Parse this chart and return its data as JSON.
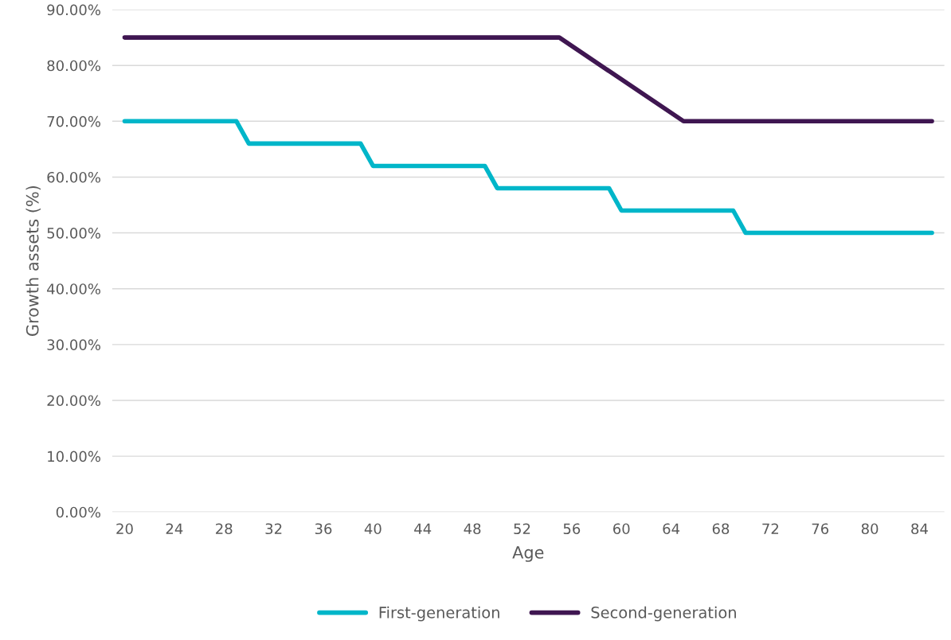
{
  "chart_data": {
    "type": "line",
    "xlabel": "Age",
    "ylabel": "Growth assets (%)",
    "series": [
      {
        "name": "First-generation",
        "color": "#00b6c9",
        "x": [
          20,
          29,
          30,
          39,
          40,
          49,
          50,
          59,
          60,
          69,
          70,
          85
        ],
        "values": [
          70,
          70,
          66,
          66,
          62,
          62,
          58,
          58,
          54,
          54,
          50,
          50
        ]
      },
      {
        "name": "Second-generation",
        "color": "#3f1651",
        "x": [
          20,
          55,
          65,
          85
        ],
        "values": [
          85,
          85,
          70,
          70
        ]
      }
    ],
    "xlim": [
      19,
      86
    ],
    "xticks": [
      20,
      24,
      28,
      32,
      36,
      40,
      44,
      48,
      52,
      56,
      60,
      64,
      68,
      72,
      76,
      80,
      84
    ],
    "ylim": [
      0,
      90
    ],
    "yticks": [
      {
        "value": 0,
        "label": "0.00%"
      },
      {
        "value": 10,
        "label": "10.00%"
      },
      {
        "value": 20,
        "label": "20.00%"
      },
      {
        "value": 30,
        "label": "30.00%"
      },
      {
        "value": 40,
        "label": "40.00%"
      },
      {
        "value": 50,
        "label": "50.00%"
      },
      {
        "value": 60,
        "label": "60.00%"
      },
      {
        "value": 70,
        "label": "70.00%"
      },
      {
        "value": 80,
        "label": "80.00%"
      },
      {
        "value": 90,
        "label": "90.00%"
      }
    ],
    "grid": "y",
    "legend": "bottom",
    "marker": "none",
    "line_style": "solid"
  }
}
